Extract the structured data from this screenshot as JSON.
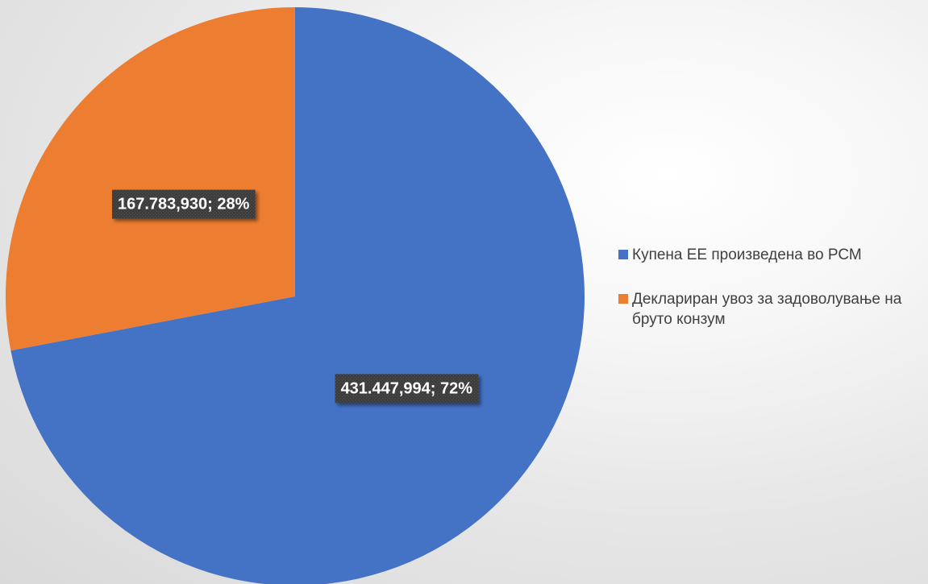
{
  "chart_data": {
    "type": "pie",
    "slices": [
      {
        "name": "Купена ЕЕ произведена во РСМ",
        "value": 431447.994,
        "label": "431.447,994; 72%",
        "percent": 72,
        "color": "#4472c4"
      },
      {
        "name": "Деклариран увоз за задоволување на бруто конзум",
        "value": 167783.93,
        "label": "167.783,930; 28%",
        "percent": 28,
        "color": "#ed7d31"
      }
    ],
    "start_angle_deg": 0,
    "direction": "clockwise",
    "legend_position": "right",
    "data_label_style": "dark box, white bold text"
  }
}
